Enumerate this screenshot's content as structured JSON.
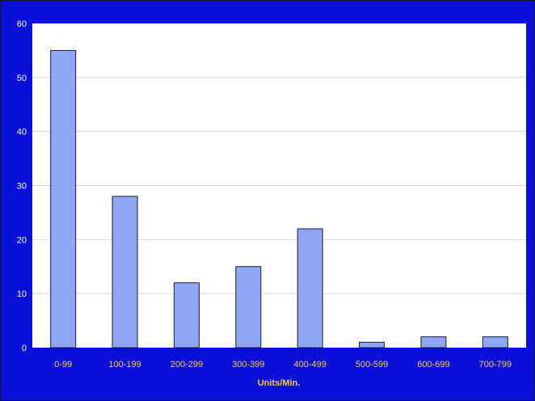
{
  "chart_data": {
    "type": "bar",
    "categories": [
      "0-99",
      "100-199",
      "200-299",
      "300-399",
      "400-499",
      "500-599",
      "600-699",
      "700-799"
    ],
    "values": [
      55,
      28,
      12,
      15,
      22,
      1,
      2,
      2
    ],
    "xlabel": "Units/Min.",
    "ylabel": "",
    "ylim": [
      0,
      60
    ],
    "yticks": [
      "0",
      "10",
      "20",
      "30",
      "40",
      "50",
      "60"
    ],
    "grid": true,
    "legend": "none"
  },
  "colors": {
    "background": "#0a10d8",
    "plot_area": "#ffffff",
    "bar_fill": "#8fa6f2",
    "bar_stroke": "#1a1a3a",
    "gridline": "#d9d9d9",
    "tick_text": "#ffffff",
    "category_text": "#ffcc33"
  }
}
